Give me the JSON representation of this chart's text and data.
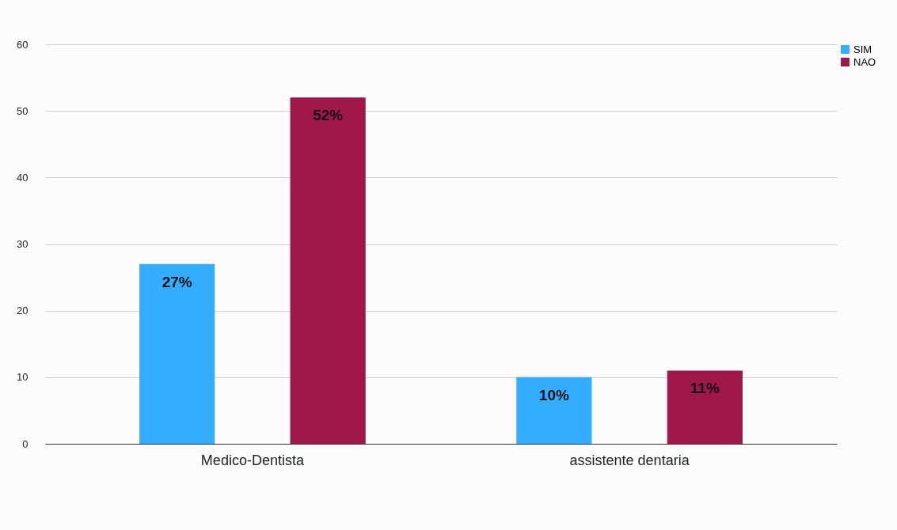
{
  "chart_data": {
    "type": "bar",
    "categories": [
      "Medico-Dentista",
      "assistente dentaria"
    ],
    "series": [
      {
        "name": "SIM",
        "color": "#33adff",
        "values": [
          27,
          10
        ],
        "value_labels": [
          "27%",
          "10%"
        ]
      },
      {
        "name": "NAO",
        "color": "#a0174c",
        "values": [
          52,
          11
        ],
        "value_labels": [
          "52%",
          "11%"
        ]
      }
    ],
    "ylim": [
      0,
      60
    ],
    "yticks": [
      0,
      10,
      20,
      30,
      40,
      50,
      60
    ],
    "grid": "y",
    "legend": "top right"
  }
}
